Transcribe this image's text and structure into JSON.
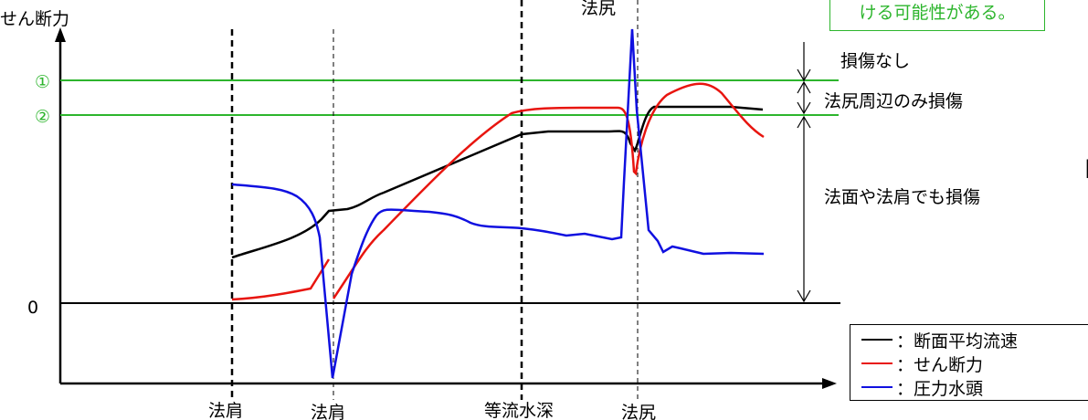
{
  "y_axis_label": "せん断力",
  "zero_label": "0",
  "threshold_1_label": "①",
  "threshold_2_label": "②",
  "top_note": "ける可能性がある。",
  "top_partial_label": "法尻",
  "edge_bracket": "【",
  "zones": {
    "none": "損傷なし",
    "toe_only": "法尻周辺のみ損傷",
    "face_and_shoulder": "法面や法肩でも損傷"
  },
  "x_labels": [
    "法肩",
    "法肩",
    "等流水深",
    "法尻"
  ],
  "legend": [
    {
      "label": "：断面平均流速",
      "color": "#000000"
    },
    {
      "label": "：せん断力",
      "color": "#e8150f"
    },
    {
      "label": "：圧力水頭",
      "color": "#1010e0"
    }
  ],
  "colors": {
    "threshold": "#2db52d",
    "velocity": "#000000",
    "shear": "#e8150f",
    "pressure": "#1010e0"
  }
}
